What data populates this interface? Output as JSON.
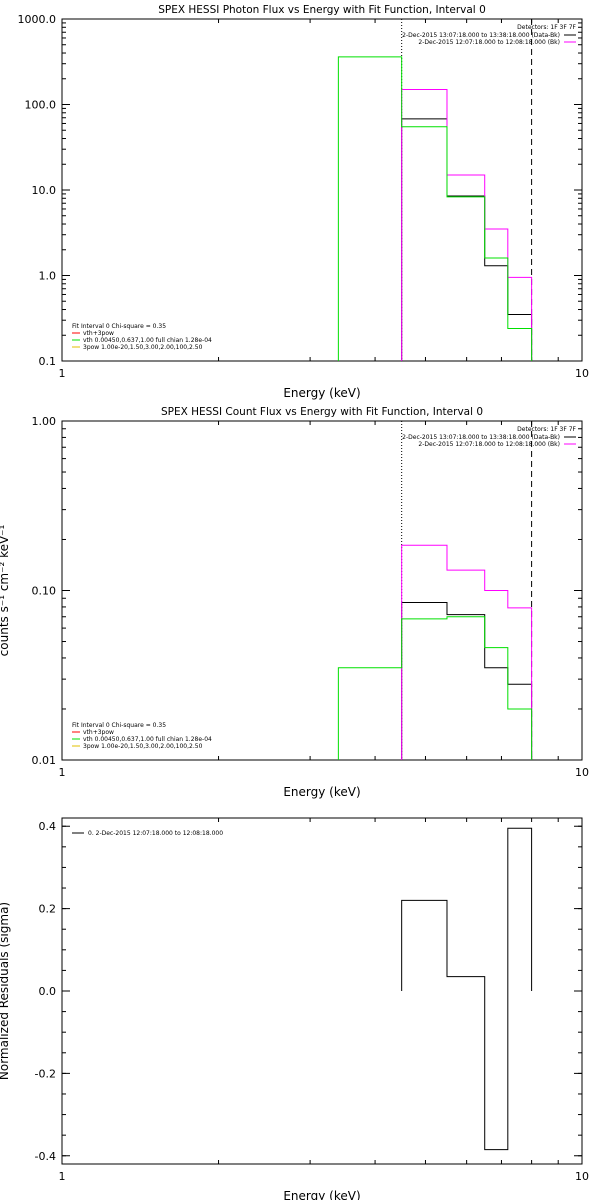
{
  "colors": {
    "axes": "#000000",
    "black": "#000000",
    "magenta": "#ff00ff",
    "green": "#00e000",
    "red": "#ff0000",
    "yellow": "#e0c000"
  },
  "chart_data": [
    {
      "type": "line",
      "title": "SPEX HESSI Photon Flux vs Energy with Fit Function, Interval 0",
      "xlabel": "Energy (keV)",
      "ylabel": "",
      "xscale": "log",
      "yscale": "log",
      "xlim": [
        1,
        10
      ],
      "ylim": [
        0.1,
        1000
      ],
      "xticks": [
        "1",
        "10"
      ],
      "yticks": [
        "0.1",
        "1.0",
        "10.0",
        "100.0",
        "1000.0"
      ],
      "top_legend": [
        "Detectors: 1F 3F 7F",
        "2-Dec-2015 13:07:18.000 to 13:38:18.000 (Data-Bk)",
        "2-Dec-2015 12:07:18.000 to 12:08:18.000 (Bk)"
      ],
      "fit_legend": [
        "Fit Interval 0   Chi-square = 0.35",
        "vth+3pow",
        "vth 0.00450,0.637,1.00  full chian 1.28e-04",
        "3pow 1.00e-20,1.50,3.00,2.00,100,2.50"
      ],
      "vlines": {
        "dotted": 4.5,
        "dashed": 8.0
      },
      "series": [
        {
          "name": "2-Dec-2015 13:07:18.000 to 13:38:18.000 (Data-Bk)",
          "color": "black",
          "bins": [
            [
              4.5,
              5.5,
              68
            ],
            [
              5.5,
              6.5,
              8.5
            ],
            [
              6.5,
              7.2,
              1.3
            ],
            [
              7.2,
              8.0,
              0.35
            ]
          ]
        },
        {
          "name": "2-Dec-2015 12:07:18.000 to 12:08:18.000 (Bk)",
          "color": "magenta",
          "bins": [
            [
              4.5,
              5.5,
              150
            ],
            [
              5.5,
              6.5,
              15
            ],
            [
              6.5,
              7.2,
              3.5
            ],
            [
              7.2,
              8.0,
              0.95
            ]
          ]
        },
        {
          "name": "vth+3pow",
          "color": "green",
          "bins": [
            [
              3.4,
              4.5,
              360
            ],
            [
              4.5,
              5.5,
              55
            ],
            [
              5.5,
              6.5,
              8.3
            ],
            [
              6.5,
              7.2,
              1.6
            ],
            [
              7.2,
              8.0,
              0.24
            ]
          ]
        }
      ]
    },
    {
      "type": "line",
      "title": "SPEX HESSI Count Flux vs Energy with Fit Function, Interval 0",
      "xlabel": "Energy (keV)",
      "ylabel": "counts s⁻¹ cm⁻² keV⁻¹",
      "xscale": "log",
      "yscale": "log",
      "xlim": [
        1,
        10
      ],
      "ylim": [
        0.01,
        1.0
      ],
      "xticks": [
        "1",
        "10"
      ],
      "yticks": [
        "0.01",
        "0.10",
        "1.00"
      ],
      "top_legend": [
        "Detectors: 1F 3F 7F",
        "2-Dec-2015 13:07:18.000 to 13:38:18.000 (Data-Bk)",
        "2-Dec-2015 12:07:18.000 to 12:08:18.000 (Bk)"
      ],
      "fit_legend": [
        "Fit Interval 0   Chi-square = 0.35",
        "vth+3pow",
        "vth 0.00450,0.637,1.00  full chian 1.28e-04",
        "3pow 1.00e-20,1.50,3.00,2.00,100,2.50"
      ],
      "vlines": {
        "dotted": 4.5,
        "dashed": 8.0
      },
      "series": [
        {
          "name": "2-Dec-2015 13:07:18.000 to 13:38:18.000 (Data-Bk)",
          "color": "black",
          "bins": [
            [
              4.5,
              5.5,
              0.085
            ],
            [
              5.5,
              6.5,
              0.072
            ],
            [
              6.5,
              7.2,
              0.035
            ],
            [
              7.2,
              8.0,
              0.028
            ]
          ]
        },
        {
          "name": "2-Dec-2015 12:07:18.000 to 12:08:18.000 (Bk)",
          "color": "magenta",
          "bins": [
            [
              4.5,
              5.5,
              0.185
            ],
            [
              5.5,
              6.5,
              0.132
            ],
            [
              6.5,
              7.2,
              0.1
            ],
            [
              7.2,
              8.0,
              0.079
            ]
          ]
        },
        {
          "name": "vth+3pow",
          "color": "green",
          "bins": [
            [
              3.4,
              4.5,
              0.035
            ],
            [
              4.5,
              5.5,
              0.068
            ],
            [
              5.5,
              6.5,
              0.07
            ],
            [
              6.5,
              7.2,
              0.046
            ],
            [
              7.2,
              8.0,
              0.02
            ]
          ]
        }
      ]
    },
    {
      "type": "line",
      "title": "",
      "xlabel": "Energy (keV)",
      "ylabel": "Normalized Residuals (sigma)",
      "xscale": "log",
      "yscale": "linear",
      "xlim": [
        1,
        10
      ],
      "ylim": [
        -0.42,
        0.42
      ],
      "xticks": [
        "1",
        "10"
      ],
      "yticks": [
        "-0.4",
        "-0.2",
        "0.0",
        "0.2",
        "0.4"
      ],
      "ytick_values": [
        -0.4,
        -0.2,
        0.0,
        0.2,
        0.4
      ],
      "legend": [
        "0.  2-Dec-2015 12:07:18.000 to 12:08:18.000"
      ],
      "series": [
        {
          "name": "0.  2-Dec-2015 12:07:18.000 to 12:08:18.000",
          "color": "black",
          "bins": [
            [
              4.5,
              5.5,
              0.22
            ],
            [
              5.5,
              6.5,
              0.035
            ],
            [
              6.5,
              7.2,
              -0.385
            ],
            [
              7.2,
              8.0,
              0.395
            ]
          ]
        }
      ]
    }
  ]
}
